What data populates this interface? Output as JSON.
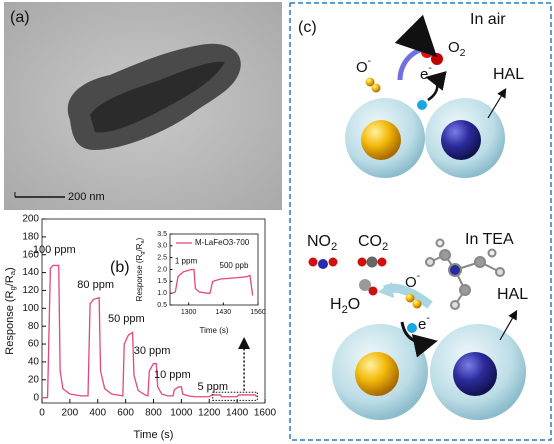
{
  "panel_a": {
    "label": "(a)",
    "scale_bar": "200 nm"
  },
  "chart_data": [
    {
      "type": "line",
      "panel_label": "(b)",
      "xlabel": "Time (s)",
      "ylabel": [
        "Response (R",
        "g",
        "/R",
        "a",
        ")"
      ],
      "x": [
        0,
        40,
        60,
        80,
        120,
        130,
        150,
        200,
        280,
        330,
        345,
        370,
        410,
        420,
        450,
        500,
        580,
        590,
        620,
        650,
        660,
        690,
        740,
        760,
        770,
        800,
        820,
        830,
        860,
        900,
        940,
        950,
        980,
        1000,
        1010,
        1050,
        1100,
        1200,
        1220,
        1280,
        1290,
        1400,
        1410,
        1500,
        1530,
        1540
      ],
      "values": [
        0,
        0,
        145,
        148,
        148,
        30,
        10,
        4,
        2,
        2,
        105,
        110,
        112,
        30,
        10,
        4,
        2,
        60,
        70,
        73,
        25,
        8,
        3,
        2,
        30,
        38,
        38,
        12,
        4,
        2,
        2,
        9,
        12,
        12,
        4,
        2,
        1,
        1,
        3,
        3,
        1,
        1,
        3,
        3,
        3,
        1
      ],
      "color": "#e2477d",
      "annotations": [
        "100 ppm",
        "80 ppm",
        "50 ppm",
        "30 ppm",
        "10 ppm",
        "5 ppm"
      ],
      "xlim": [
        0,
        1600
      ],
      "xticks": [
        0,
        200,
        400,
        600,
        800,
        1000,
        1200,
        1400,
        1600
      ],
      "ylim": [
        -6,
        200
      ],
      "yticks": [
        0,
        20,
        40,
        60,
        80,
        100,
        120,
        140,
        160,
        180,
        200
      ]
    },
    {
      "type": "line",
      "xlabel": "Time (s)",
      "ylabel": [
        "Response (R",
        "g",
        "/R",
        "a",
        ")"
      ],
      "x": [
        1240,
        1250,
        1260,
        1280,
        1310,
        1320,
        1325,
        1340,
        1370,
        1380,
        1390,
        1420,
        1480,
        1520,
        1530,
        1540
      ],
      "series": [
        {
          "name": "M-LaFeO3-700",
          "color": "#e2477d",
          "values": [
            1,
            1.05,
            1.7,
            1.9,
            2.0,
            2.0,
            1.2,
            1.05,
            1.0,
            1.0,
            1.5,
            1.6,
            1.65,
            1.7,
            1.75,
            0.9
          ]
        }
      ],
      "annotations": [
        "1 ppm",
        "500 ppb"
      ],
      "xlim": [
        1230,
        1560
      ],
      "xticks": [
        1300,
        1430,
        1560
      ],
      "ylim": [
        0.5,
        3.5
      ],
      "yticks": [
        {
          "value": 0.5,
          "label": "0.5"
        },
        {
          "value": 1,
          "label": "1.0"
        },
        {
          "value": 1.5,
          "label": "1.5"
        },
        {
          "value": 2,
          "label": "2.0"
        },
        {
          "value": 2.5,
          "label": "2.5"
        },
        {
          "value": 3,
          "label": "3.0"
        },
        {
          "value": 3.5,
          "label": "3.5"
        }
      ]
    }
  ],
  "panel_c": {
    "label": "(c)",
    "air_title": "In air",
    "o2": [
      "O",
      "2"
    ],
    "o_ion_air": [
      "O",
      "-"
    ],
    "e_air": [
      "e",
      "-"
    ],
    "hal_air": "HAL",
    "tea_title": "In TEA",
    "no2": [
      "NO",
      "2"
    ],
    "co2": [
      "CO",
      "2"
    ],
    "h2o": [
      "H",
      "2",
      "O"
    ],
    "o_ion_tea": [
      "O",
      "-"
    ],
    "e_tea": [
      "e",
      "-"
    ],
    "hal_tea": "HAL"
  }
}
